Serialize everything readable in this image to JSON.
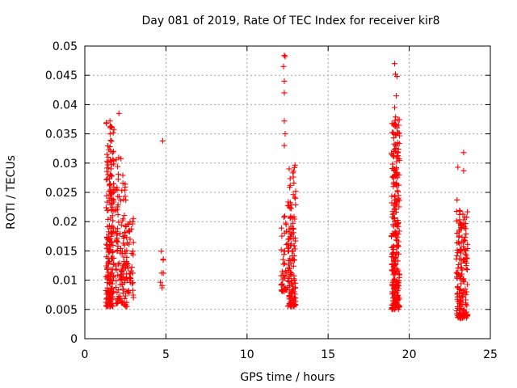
{
  "chart_data": {
    "type": "scatter",
    "title": "Day 081 of 2019, Rate Of TEC Index for receiver kir8",
    "xlabel": "GPS time / hours",
    "ylabel": "ROTI / TECUs",
    "xlim": [
      0,
      25
    ],
    "ylim": [
      0,
      0.05
    ],
    "xticks": [
      0,
      5,
      10,
      15,
      20,
      25
    ],
    "xtick_labels": [
      "0",
      "5",
      "10",
      "15",
      "20",
      "25"
    ],
    "yticks": [
      0,
      0.005,
      0.01,
      0.015,
      0.02,
      0.025,
      0.03,
      0.035,
      0.04,
      0.045,
      0.05
    ],
    "ytick_labels": [
      "0",
      "0.005",
      "0.01",
      "0.015",
      "0.02",
      "0.025",
      "0.03",
      "0.035",
      "0.04",
      "0.045",
      "0.05"
    ],
    "grid": true,
    "marker": "+",
    "color": "#ff0000",
    "clusters": [
      {
        "x_range": [
          1.3,
          1.8
        ],
        "y_range": [
          0.0055,
          0.037
        ],
        "count": 210
      },
      {
        "x_range": [
          1.9,
          2.3
        ],
        "y_range": [
          0.006,
          0.031
        ],
        "count": 70
      },
      {
        "x_range": [
          2.3,
          2.6
        ],
        "y_range": [
          0.0055,
          0.028
        ],
        "count": 60
      },
      {
        "x_range": [
          2.6,
          3.0
        ],
        "y_range": [
          0.007,
          0.021
        ],
        "count": 40
      },
      {
        "x_range": [
          4.6,
          4.85
        ],
        "y_range": [
          0.0065,
          0.0155
        ],
        "count": 8
      },
      {
        "x_range": [
          12.1,
          12.45
        ],
        "y_range": [
          0.008,
          0.022
        ],
        "count": 40
      },
      {
        "x_range": [
          12.5,
          13.0
        ],
        "y_range": [
          0.0055,
          0.0305
        ],
        "count": 140
      },
      {
        "x_range": [
          18.9,
          19.4
        ],
        "y_range": [
          0.005,
          0.038
        ],
        "count": 270
      },
      {
        "x_range": [
          22.9,
          23.6
        ],
        "y_range": [
          0.0035,
          0.022
        ],
        "count": 170
      }
    ],
    "outliers": [
      {
        "x": 2.1,
        "y": 0.0385
      },
      {
        "x": 1.55,
        "y": 0.0372
      },
      {
        "x": 4.8,
        "y": 0.0338
      },
      {
        "x": 12.3,
        "y": 0.0484
      },
      {
        "x": 12.35,
        "y": 0.0482
      },
      {
        "x": 12.25,
        "y": 0.0465
      },
      {
        "x": 12.3,
        "y": 0.044
      },
      {
        "x": 12.3,
        "y": 0.042
      },
      {
        "x": 12.3,
        "y": 0.0372
      },
      {
        "x": 12.35,
        "y": 0.035
      },
      {
        "x": 12.3,
        "y": 0.033
      },
      {
        "x": 19.1,
        "y": 0.047
      },
      {
        "x": 19.15,
        "y": 0.0452
      },
      {
        "x": 19.25,
        "y": 0.0448
      },
      {
        "x": 19.2,
        "y": 0.0415
      },
      {
        "x": 19.1,
        "y": 0.0395
      },
      {
        "x": 23.35,
        "y": 0.0318
      },
      {
        "x": 23.0,
        "y": 0.0293
      },
      {
        "x": 23.35,
        "y": 0.0287
      },
      {
        "x": 22.95,
        "y": 0.0237
      }
    ]
  }
}
